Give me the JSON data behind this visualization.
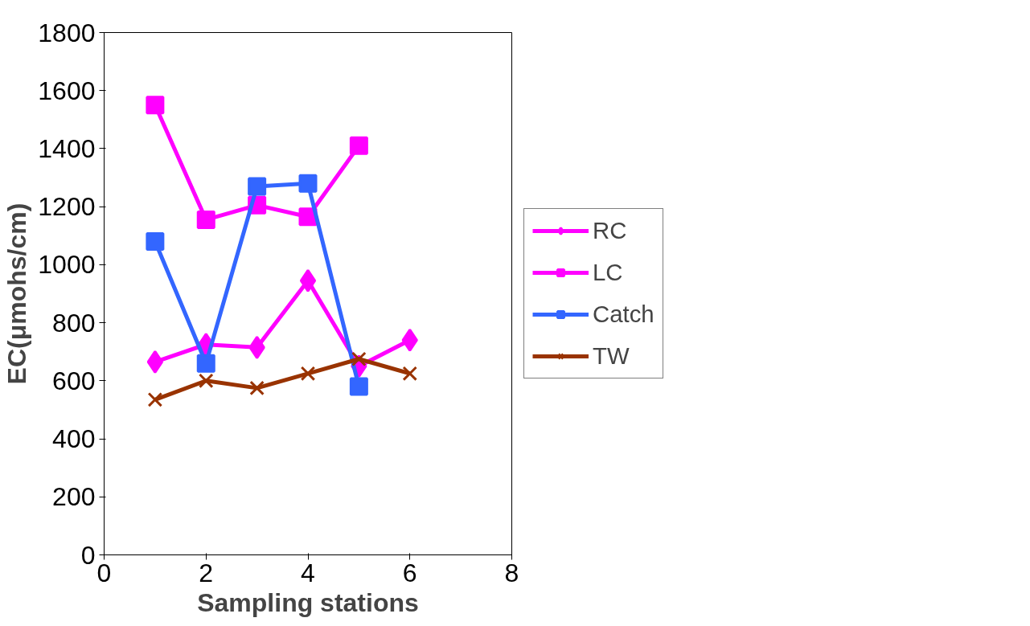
{
  "chart_data": {
    "type": "line",
    "xlabel": "Sampling stations",
    "ylabel": "EC(μmohs/cm)",
    "xlim": [
      0,
      8
    ],
    "xticks": [
      0,
      2,
      4,
      6,
      8
    ],
    "ylim": [
      0,
      1800
    ],
    "yticks": [
      0,
      200,
      400,
      600,
      800,
      1000,
      1200,
      1400,
      1600,
      1800
    ],
    "grid": false,
    "legend": "right",
    "line_style": "solid",
    "series": [
      {
        "name": "RC",
        "color": "#ff00ff",
        "marker": "diamond",
        "x": [
          1,
          2,
          3,
          4,
          5,
          6
        ],
        "values": [
          665,
          725,
          715,
          945,
          650,
          740
        ]
      },
      {
        "name": "LC",
        "color": "#ff00ff",
        "marker": "square",
        "x": [
          1,
          2,
          3,
          4,
          5
        ],
        "values": [
          1550,
          1155,
          1205,
          1165,
          1410
        ]
      },
      {
        "name": "Catch",
        "color": "#3366ff",
        "marker": "square",
        "x": [
          1,
          2,
          3,
          4,
          5
        ],
        "values": [
          1080,
          660,
          1270,
          1280,
          580
        ]
      },
      {
        "name": "TW",
        "color": "#993300",
        "marker": "cross",
        "x": [
          1,
          2,
          3,
          4,
          5,
          6
        ],
        "values": [
          535,
          600,
          575,
          625,
          675,
          625
        ]
      }
    ]
  }
}
